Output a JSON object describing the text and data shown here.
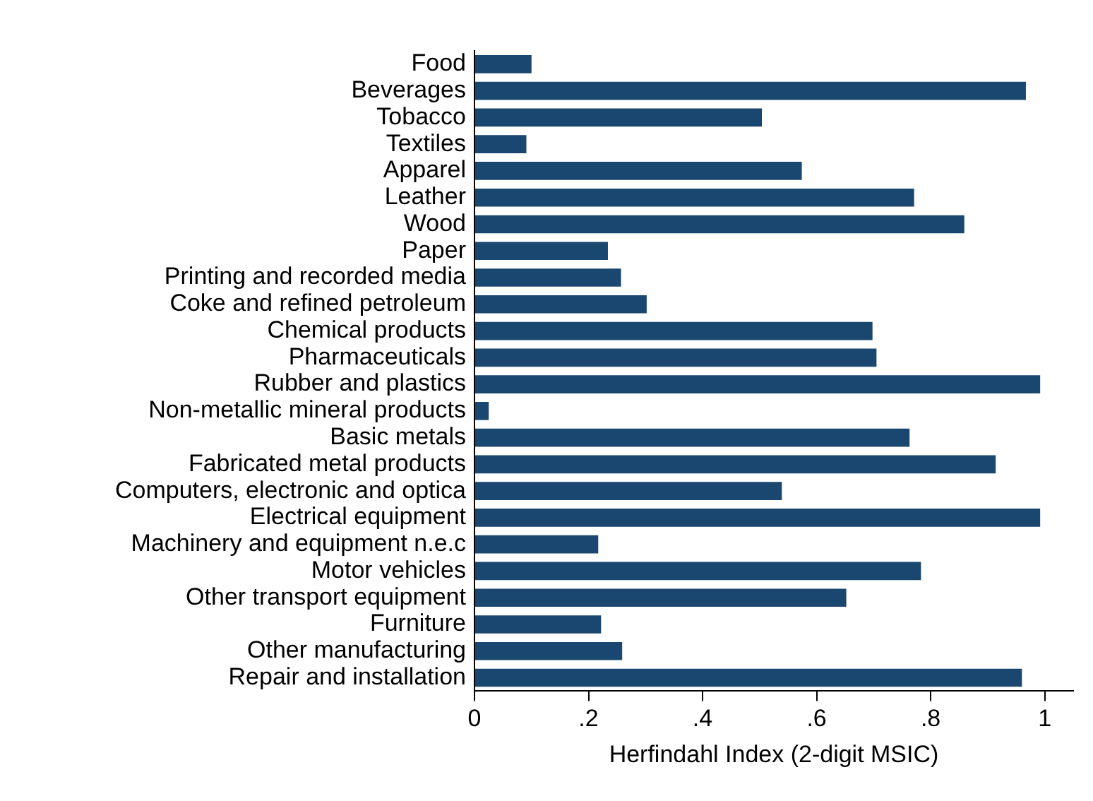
{
  "chart_data": {
    "type": "bar",
    "orientation": "horizontal",
    "xlabel": "Herfindahl Index (2-digit MSIC)",
    "categories": [
      "Food",
      "Beverages",
      "Tobacco",
      "Textiles",
      "Apparel",
      "Leather",
      "Wood",
      "Paper",
      "Printing and recorded media",
      "Coke and refined petroleum",
      "Chemical products",
      "Pharmaceuticals",
      "Rubber and plastics",
      "Non-metallic mineral products",
      "Basic metals",
      "Fabricated metal products",
      "Computers, electronic and optica",
      "Electrical equipment",
      "Machinery and equipment n.e.c",
      "Motor vehicles",
      "Other transport equipment",
      "Furniture",
      "Other manufacturing",
      "Repair and installation"
    ],
    "values": [
      0.1,
      0.967,
      0.504,
      0.091,
      0.574,
      0.771,
      0.859,
      0.234,
      0.257,
      0.302,
      0.698,
      0.705,
      0.992,
      0.025,
      0.763,
      0.914,
      0.539,
      0.992,
      0.217,
      0.783,
      0.652,
      0.222,
      0.259,
      0.96
    ],
    "color": "#1a476f",
    "xlim": [
      0,
      1.05
    ],
    "xticks": [
      0,
      {
        "value": 0.2,
        "label": ".2"
      },
      {
        "value": 0.4,
        "label": ".4"
      },
      {
        "value": 0.6,
        "label": ".6"
      },
      {
        "value": 0.8,
        "label": ".8"
      },
      1
    ],
    "grid": false,
    "legend": false
  }
}
